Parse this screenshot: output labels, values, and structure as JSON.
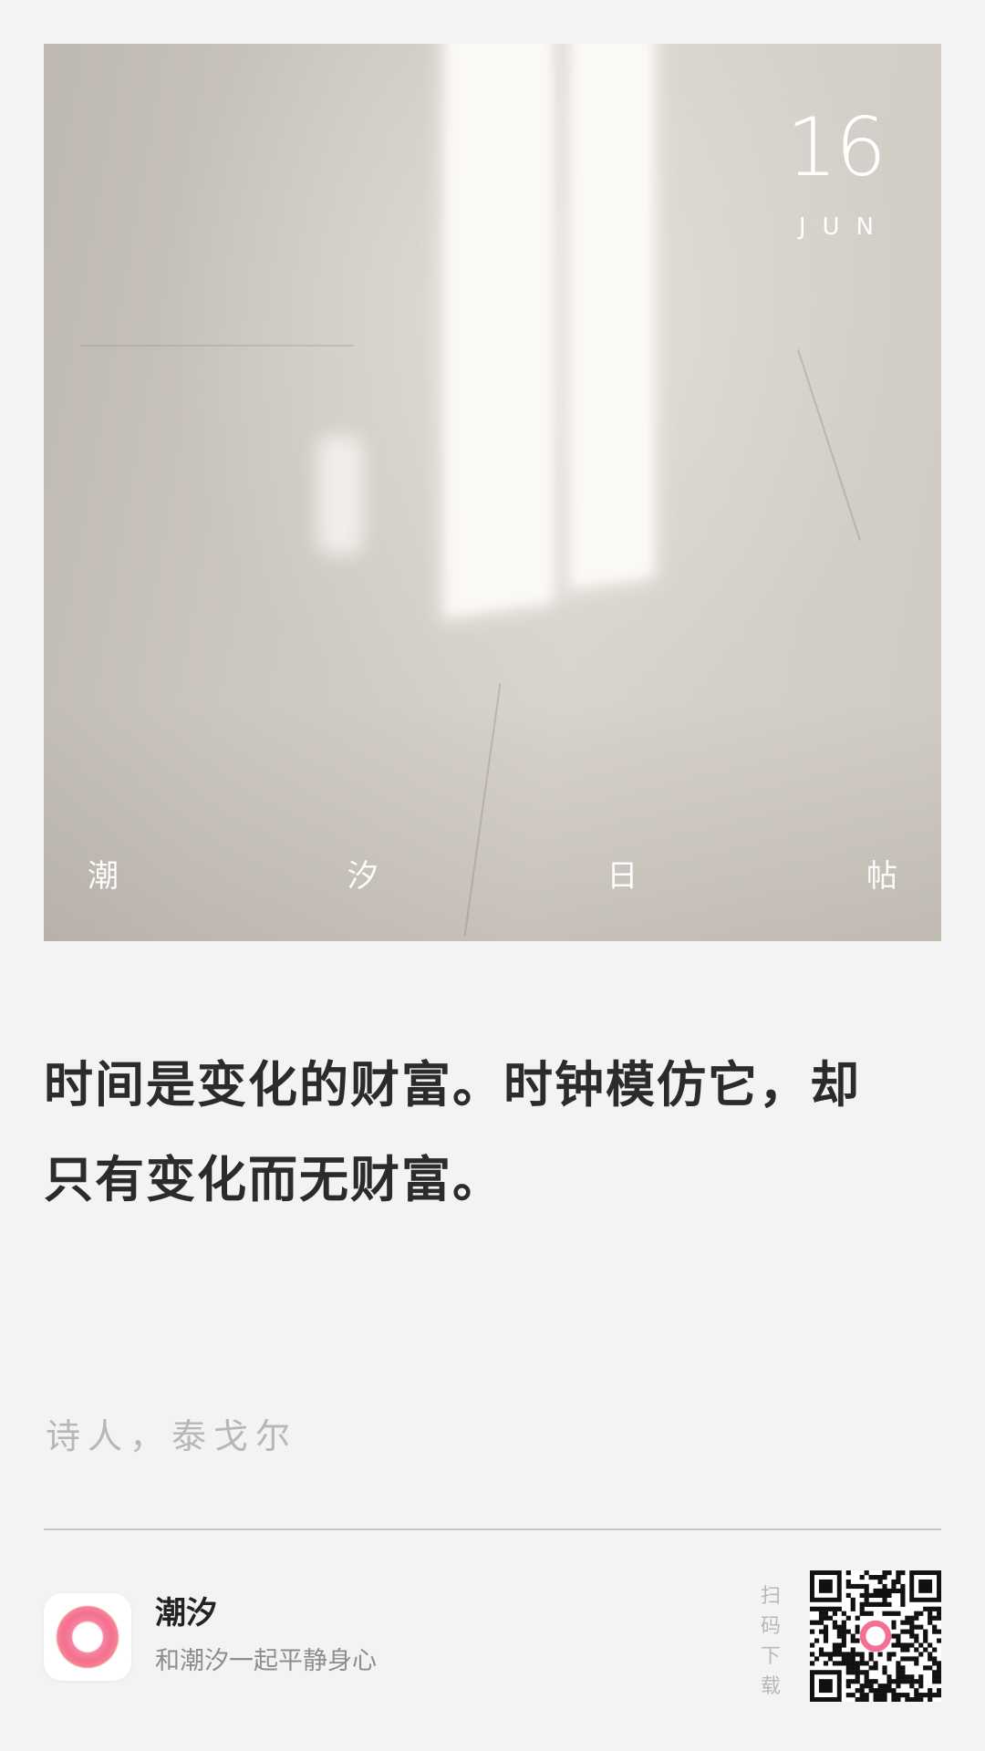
{
  "hero": {
    "date_day": "16",
    "date_month": "JUN",
    "brand_chars": [
      "潮",
      "汐",
      "日",
      "帖"
    ]
  },
  "quote": {
    "lines": [
      "时间是变化的财富。时钟模仿它，却",
      "只有变化而无财富。"
    ],
    "author": "诗人，泰戈尔"
  },
  "footer": {
    "app_name": "潮汐",
    "app_slogan": "和潮汐一起平静身心",
    "scan_label": "扫码下载",
    "icon_colors": {
      "inner": "#f56f93",
      "outer": "#f7b47e"
    }
  },
  "colors": {
    "background": "#f3f3f3",
    "quote_text": "#2b2b2b",
    "muted_text": "#b7b7b7"
  },
  "icons": {
    "app_icon": "tide-app-icon",
    "qr": "qr-code"
  }
}
